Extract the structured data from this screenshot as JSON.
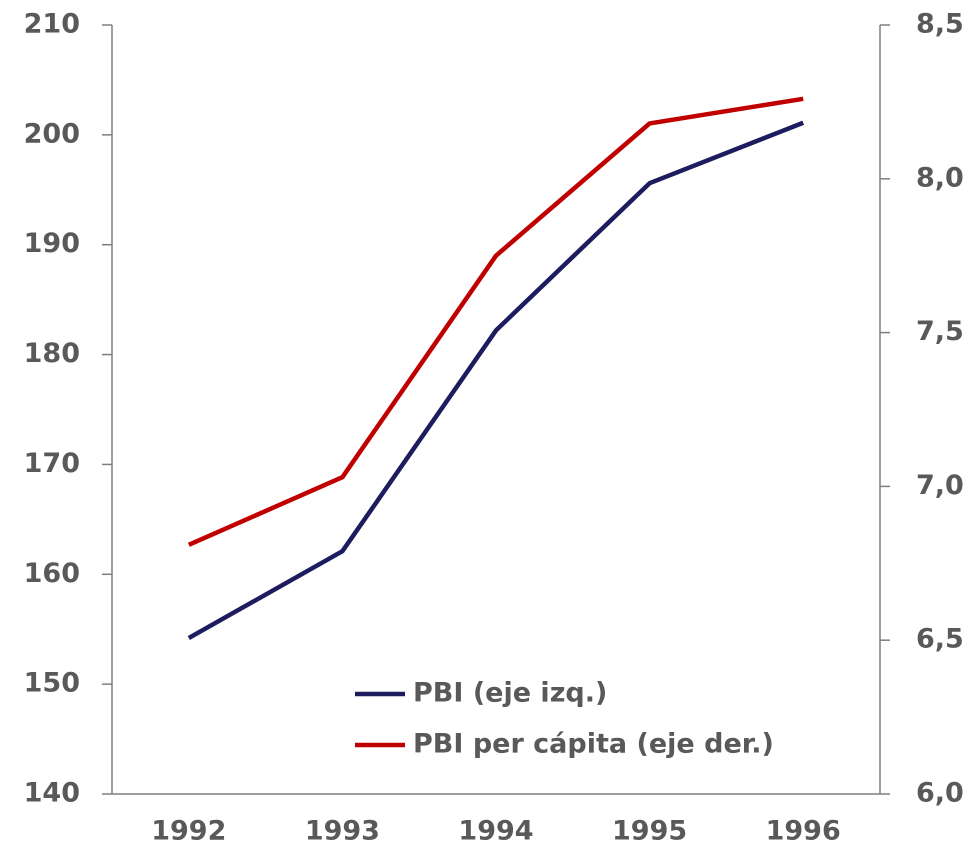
{
  "chart_data": {
    "type": "line",
    "categories": [
      "1992",
      "1993",
      "1994",
      "1995",
      "1996"
    ],
    "series": [
      {
        "name": "PBI (eje izq.)",
        "color": "#1c1c5e",
        "values": [
          154.2,
          162.1,
          182.2,
          195.6,
          201.1
        ]
      },
      {
        "name": "PBI per cápita (eje der.)",
        "color": "#c00000",
        "axis": "y2",
        "values": [
          6.81,
          7.03,
          7.75,
          8.18,
          8.26
        ]
      }
    ],
    "ylim": [
      140,
      210
    ],
    "yticks": [
      140,
      150,
      160,
      170,
      180,
      190,
      200,
      210
    ],
    "y2lim": [
      6.0,
      8.5
    ],
    "y2ticks": [
      {
        "value": 6.0,
        "label": "6,0"
      },
      {
        "value": 6.5,
        "label": "6,5"
      },
      {
        "value": 7.0,
        "label": "7,0"
      },
      {
        "value": 7.5,
        "label": "7,5"
      },
      {
        "value": 8.0,
        "label": "8,0"
      },
      {
        "value": 8.5,
        "label": "8,5"
      }
    ],
    "legend": "bottom-center"
  }
}
